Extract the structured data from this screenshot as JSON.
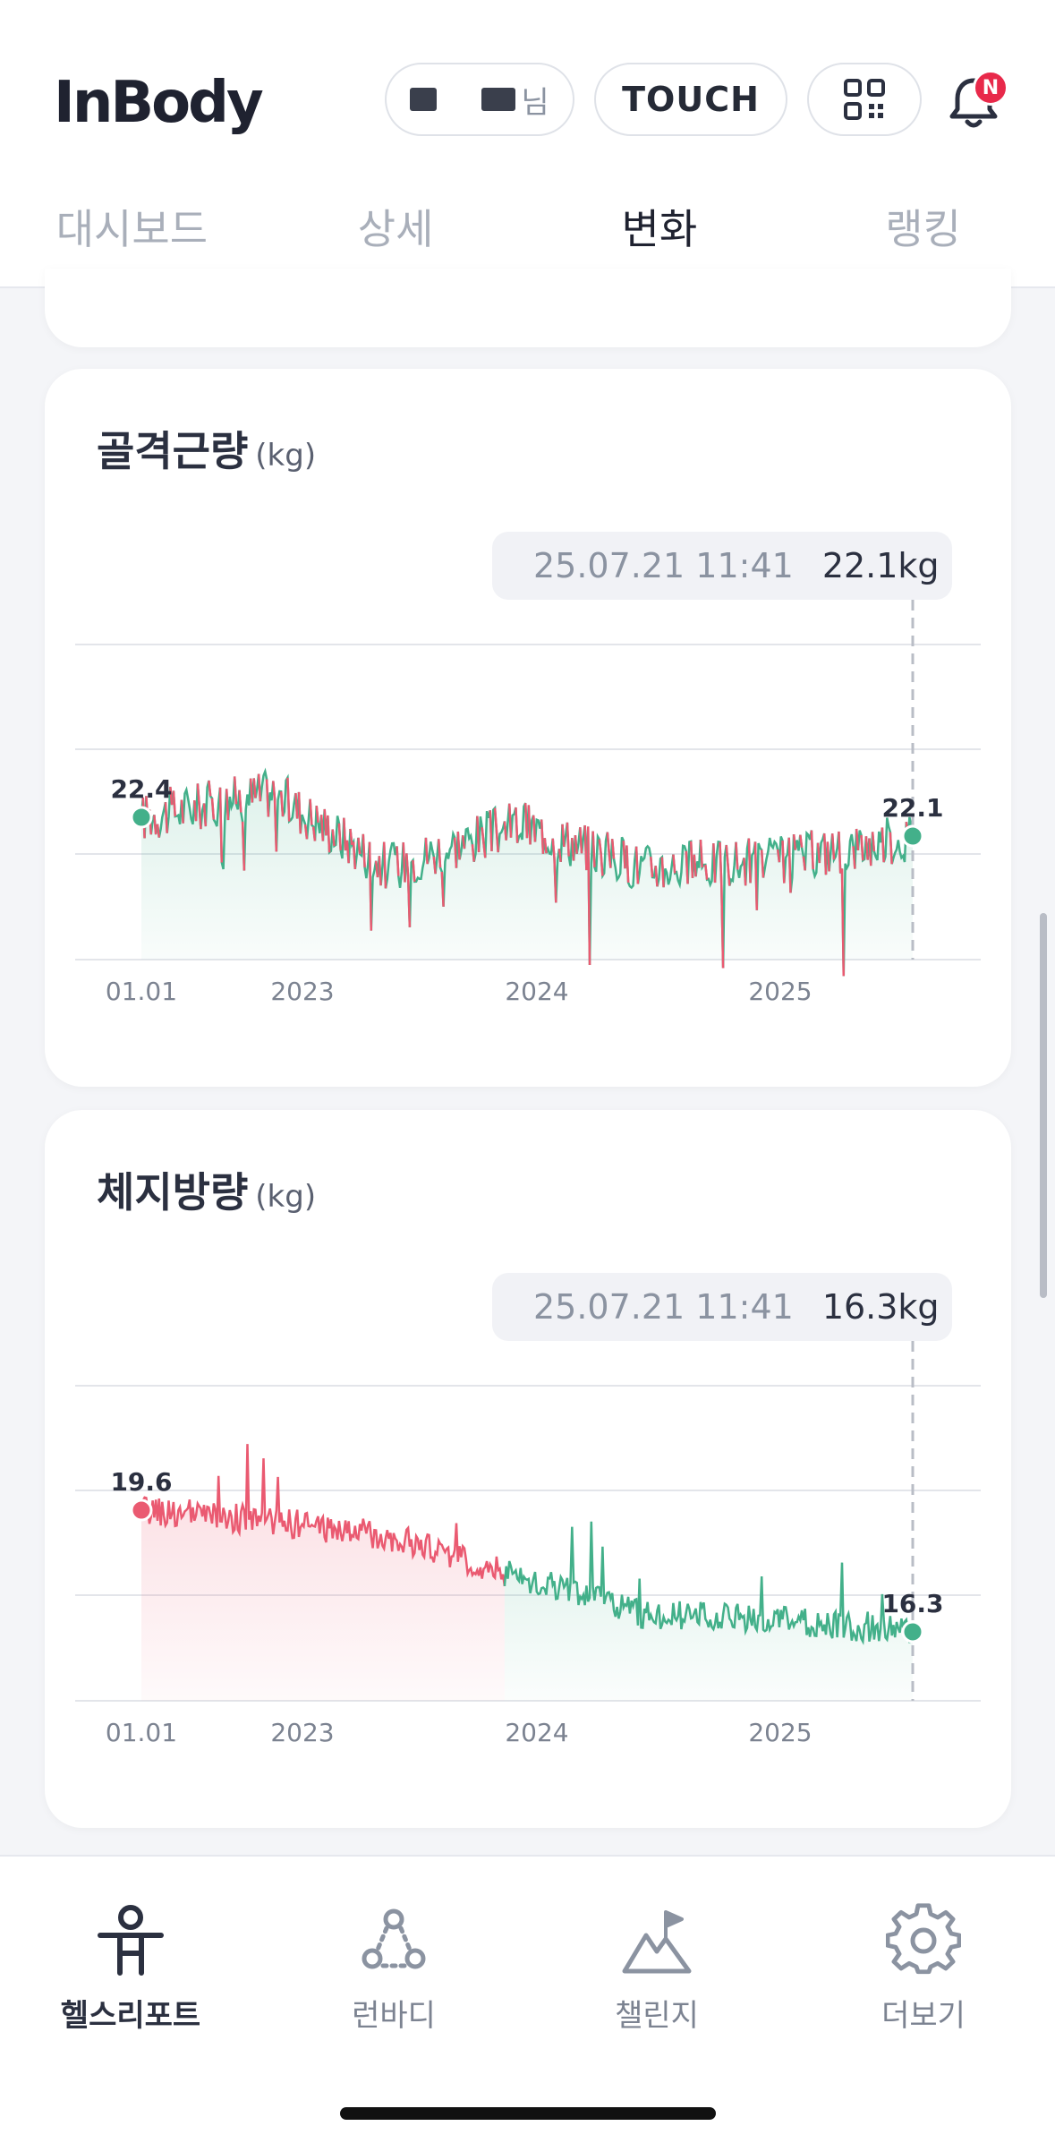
{
  "app": {
    "logo": "InBody"
  },
  "header": {
    "user_suffix": "님",
    "touch_label": "TOUCH",
    "notification_badge": "N"
  },
  "tabs": [
    {
      "label": "대시보드",
      "active": false
    },
    {
      "label": "상세",
      "active": false
    },
    {
      "label": "변화",
      "active": true
    },
    {
      "label": "랭킹",
      "active": false
    }
  ],
  "cards": [
    {
      "title": "골격근량",
      "unit": "(kg)",
      "tooltip": {
        "date": "25.07.21 11:41",
        "value": "22.1kg"
      }
    },
    {
      "title": "체지방량",
      "unit": "(kg)",
      "tooltip": {
        "date": "25.07.21 11:41",
        "value": "16.3kg"
      }
    }
  ],
  "chart_data": [
    {
      "type": "line",
      "x_tick_labels": [
        "01.01",
        "2023",
        "2024",
        "2025"
      ],
      "start_value": 22.4,
      "end_value": 22.1,
      "start_label": "22.4",
      "end_label": "22.1",
      "series_points": [
        {
          "x": "01.01",
          "y": 22.4
        },
        {
          "x": "2023",
          "y": 22.8
        },
        {
          "x": "mid-2023",
          "y": 21.6
        },
        {
          "x": "2024",
          "y": 22.3
        },
        {
          "x": "mid-2024",
          "y": 21.6
        },
        {
          "x": "2025",
          "y": 21.7
        },
        {
          "x": "25.07.21",
          "y": 22.1
        }
      ],
      "increase_color": "#43b08a",
      "decrease_color": "#ea5a71",
      "grid": true
    },
    {
      "type": "line",
      "x_tick_labels": [
        "01.01",
        "2023",
        "2024",
        "2025"
      ],
      "start_value": 19.6,
      "end_value": 16.3,
      "start_label": "19.6",
      "end_label": "16.3",
      "series_points": [
        {
          "x": "01.01",
          "y": 19.6
        },
        {
          "x": "2023",
          "y": 19.3
        },
        {
          "x": "mid-2023",
          "y": 18.9
        },
        {
          "x": "2024",
          "y": 17.8
        },
        {
          "x": "mid-2024",
          "y": 16.8
        },
        {
          "x": "2025",
          "y": 16.6
        },
        {
          "x": "25.07.21",
          "y": 16.3
        }
      ],
      "increase_color": "#ea5a71",
      "decrease_color": "#43b08a",
      "grid": true
    }
  ],
  "bottom_nav": [
    {
      "label": "헬스리포트",
      "icon": "person-icon",
      "active": true
    },
    {
      "label": "런바디",
      "icon": "group-icon",
      "active": false
    },
    {
      "label": "챌린지",
      "icon": "mountain-flag-icon",
      "active": false
    },
    {
      "label": "더보기",
      "icon": "gear-icon",
      "active": false
    }
  ],
  "colors": {
    "green": "#43b08a",
    "red": "#ea5a71",
    "text": "#2b3040",
    "muted": "#8b93a1"
  }
}
